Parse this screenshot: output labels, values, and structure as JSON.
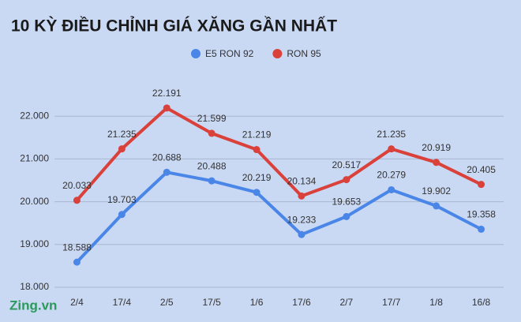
{
  "chart_data": {
    "type": "line",
    "title": "10 KỲ ĐIỀU CHỈNH GIÁ XĂNG GẦN NHẤT",
    "watermark": "Zing.vn",
    "categories": [
      "2/4",
      "17/4",
      "2/5",
      "17/5",
      "1/6",
      "17/6",
      "2/7",
      "17/7",
      "1/8",
      "16/8"
    ],
    "series": [
      {
        "name": "E5 RON 92",
        "color": "#4a86e8",
        "values": [
          18588,
          19703,
          20688,
          20488,
          20219,
          19233,
          19653,
          20279,
          19902,
          19358
        ],
        "value_labels": [
          "18.588",
          "19.703",
          "20.688",
          "20.488",
          "20.219",
          "19.233",
          "19.653",
          "20.279",
          "19.902",
          "19.358"
        ]
      },
      {
        "name": "RON 95",
        "color": "#d9413a",
        "values": [
          20033,
          21235,
          22191,
          21599,
          21219,
          20134,
          20517,
          21235,
          20919,
          20405
        ],
        "value_labels": [
          "20.033",
          "21.235",
          "22.191",
          "21.599",
          "21.219",
          "20.134",
          "20.517",
          "21.235",
          "20.919",
          "20.405"
        ]
      }
    ],
    "ylim": [
      18000,
      23000
    ],
    "yticks": [
      {
        "value": 18000,
        "label": "18.000"
      },
      {
        "value": 19000,
        "label": "19.000"
      },
      {
        "value": 20000,
        "label": "20.000"
      },
      {
        "value": 21000,
        "label": "21.000"
      },
      {
        "value": 22000,
        "label": "22.000"
      }
    ],
    "grid": true
  }
}
